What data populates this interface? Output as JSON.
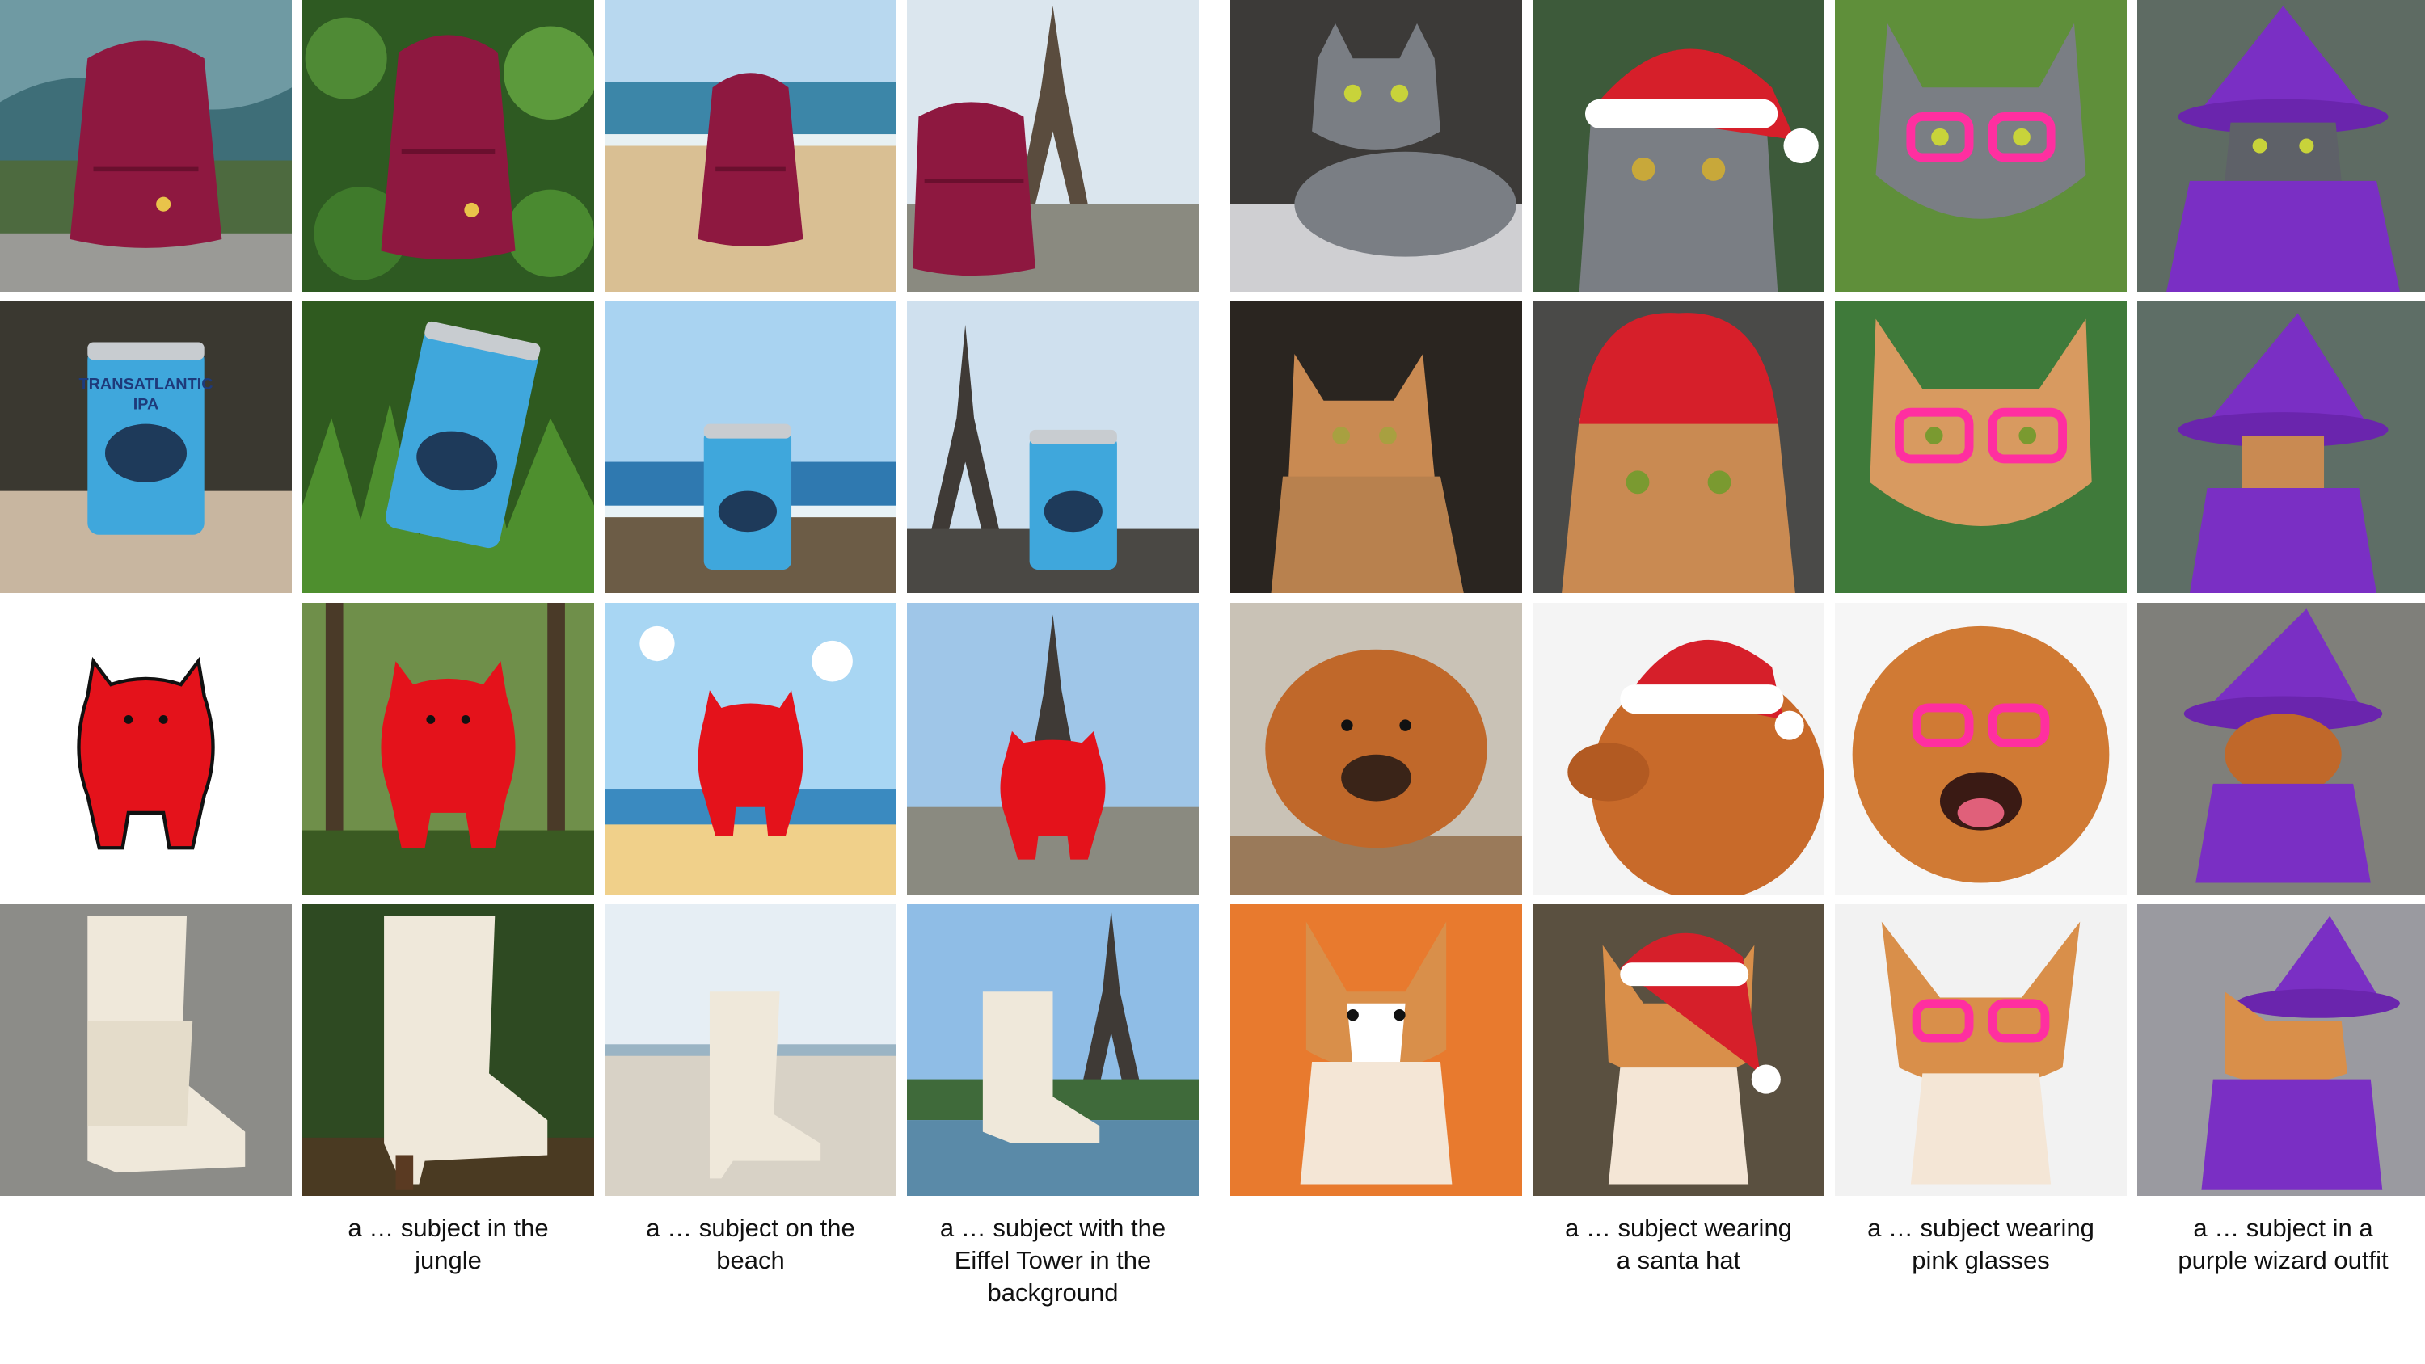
{
  "captions": {
    "jungle": "a … subject in the\njungle",
    "beach": "a … subject on the\nbeach",
    "eiffel": "a … subject with the\nEiffel Tower in the\nbackground",
    "santa": "a … subject wearing\na santa hat",
    "glasses": "a … subject wearing\npink glasses",
    "wizard": "a … subject in a\npurple wizard outfit"
  },
  "can_label": {
    "line1": "TRANSATLANTIC",
    "line2": "IPA"
  },
  "colors": {
    "backpack": "#8e1840",
    "can": "#3fa7dc",
    "monster": "#e4121b",
    "boot": "#efe8da",
    "gray_cat": "#7a7e84",
    "tabby_cat": "#c98a52",
    "chow": "#c0682a",
    "corgi": "#d98f4a",
    "santa_red": "#d61f2a",
    "pink_glasses": "#ff2fa0",
    "wizard_purple": "#7a2fc4"
  }
}
